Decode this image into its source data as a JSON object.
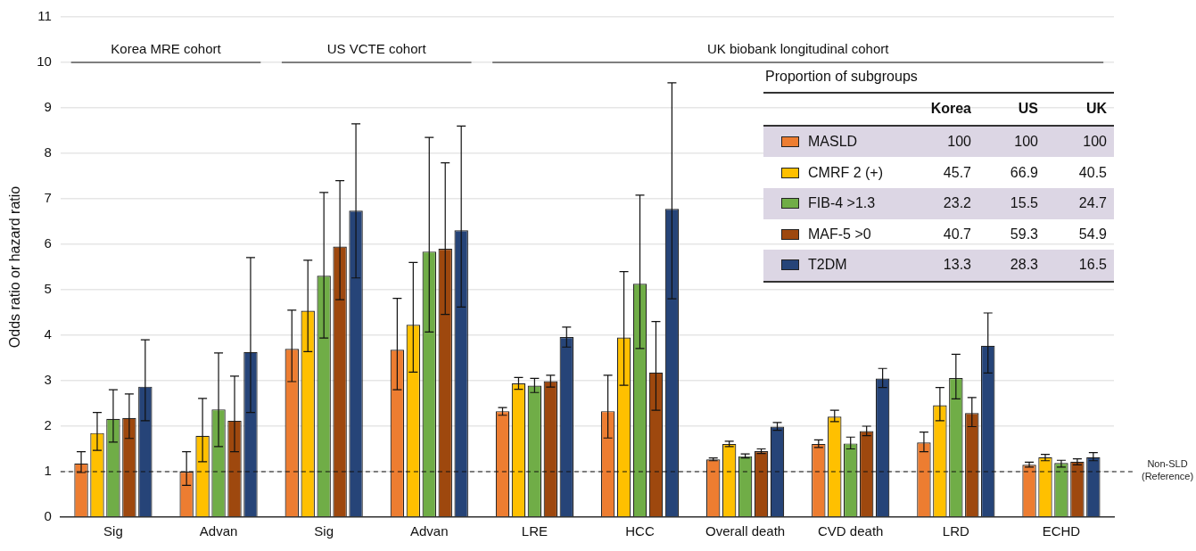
{
  "chart_data": {
    "type": "bar",
    "ylabel": "Odds ratio or hazard ratio",
    "categories": [
      "Sig",
      "Advan",
      "Sig",
      "Advan",
      "LRE",
      "HCC",
      "Overall death",
      "CVD death",
      "LRD",
      "ECHD"
    ],
    "series": [
      {
        "name": "MASLD",
        "color": "#ed7d31",
        "values": [
          1.18,
          1.0,
          3.7,
          3.68,
          2.33,
          2.33,
          1.27,
          1.61,
          1.64,
          1.15
        ],
        "errors": [
          [
            0.98,
            1.44
          ],
          [
            0.7,
            1.44
          ],
          [
            2.98,
            4.55
          ],
          [
            2.8,
            4.81
          ],
          [
            2.24,
            2.41
          ],
          [
            1.74,
            3.12
          ],
          [
            1.24,
            1.3
          ],
          [
            1.53,
            1.7
          ],
          [
            1.44,
            1.87
          ],
          [
            1.1,
            1.21
          ]
        ]
      },
      {
        "name": "CMRF 2 (+)",
        "color": "#ffc000",
        "values": [
          1.85,
          1.79,
          4.54,
          4.23,
          2.94,
          3.95,
          1.61,
          2.21,
          2.46,
          1.32
        ],
        "errors": [
          [
            1.47,
            2.3
          ],
          [
            1.22,
            2.61
          ],
          [
            3.64,
            5.65
          ],
          [
            3.19,
            5.6
          ],
          [
            2.81,
            3.07
          ],
          [
            2.9,
            5.4
          ],
          [
            1.55,
            1.67
          ],
          [
            2.1,
            2.35
          ],
          [
            2.12,
            2.85
          ],
          [
            1.24,
            1.38
          ]
        ]
      },
      {
        "name": "FIB-4 >1.3",
        "color": "#70ad47",
        "values": [
          2.16,
          2.37,
          5.31,
          5.84,
          2.89,
          5.13,
          1.34,
          1.62,
          3.06,
          1.19
        ],
        "errors": [
          [
            1.65,
            2.8
          ],
          [
            1.55,
            3.61
          ],
          [
            3.94,
            7.14
          ],
          [
            4.07,
            8.35
          ],
          [
            2.74,
            3.05
          ],
          [
            3.71,
            7.08
          ],
          [
            1.3,
            1.39
          ],
          [
            1.5,
            1.76
          ],
          [
            2.6,
            3.58
          ],
          [
            1.1,
            1.25
          ]
        ]
      },
      {
        "name": "MAF-5 >0",
        "color": "#9e480e",
        "values": [
          2.18,
          2.12,
          5.95,
          5.9,
          2.99,
          3.18,
          1.45,
          1.89,
          2.29,
          1.22
        ],
        "errors": [
          [
            1.73,
            2.71
          ],
          [
            1.44,
            3.1
          ],
          [
            4.78,
            7.4
          ],
          [
            4.46,
            7.79
          ],
          [
            2.86,
            3.12
          ],
          [
            2.35,
            4.3
          ],
          [
            1.4,
            1.5
          ],
          [
            1.79,
            2.0
          ],
          [
            1.99,
            2.63
          ],
          [
            1.15,
            1.28
          ]
        ]
      },
      {
        "name": "T2DM",
        "color": "#264478",
        "values": [
          2.87,
          3.63,
          6.74,
          6.31,
          3.96,
          6.78,
          1.99,
          3.05,
          3.77,
          1.32
        ],
        "errors": [
          [
            2.12,
            3.9
          ],
          [
            2.3,
            5.71
          ],
          [
            5.26,
            8.65
          ],
          [
            4.62,
            8.6
          ],
          [
            3.74,
            4.18
          ],
          [
            4.8,
            9.55
          ],
          [
            1.91,
            2.08
          ],
          [
            2.85,
            3.27
          ],
          [
            3.17,
            4.49
          ],
          [
            1.24,
            1.42
          ]
        ]
      }
    ],
    "ylim": [
      0,
      11
    ],
    "yticks": [
      0,
      1,
      2,
      3,
      4,
      5,
      6,
      7,
      8,
      9,
      10,
      11
    ],
    "grid": "y",
    "legend": "top right",
    "ref_lines": [
      {
        "axis": "y",
        "value": 1,
        "label": "Non-SLD (Reference)",
        "line_style": "dashed"
      }
    ],
    "annotations": [
      "Korea MRE cohort",
      "US VCTE cohort",
      "UK biobank longitudinal cohort",
      "Proportion of subgroups",
      "Korea",
      "US",
      "UK",
      "100",
      "100",
      "100",
      "45.7",
      "66.9",
      "40.5",
      "23.2",
      "15.5",
      "24.7",
      "40.7",
      "59.3",
      "54.9",
      "13.3",
      "28.3",
      "16.5"
    ]
  }
}
